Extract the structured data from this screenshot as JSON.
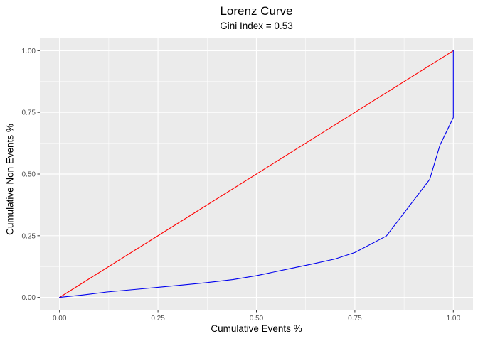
{
  "chart_data": {
    "type": "line",
    "title": "Lorenz Curve",
    "subtitle": "Gini Index = 0.53",
    "xlabel": "Cumulative Events %",
    "ylabel": "Cumulative Non Events %",
    "x_ticks": {
      "values": [
        0,
        0.25,
        0.5,
        0.75,
        1.0
      ],
      "labels": [
        "0.00",
        "0.25",
        "0.50",
        "0.75",
        "1.00"
      ]
    },
    "y_ticks": {
      "values": [
        0,
        0.25,
        0.5,
        0.75,
        1.0
      ],
      "labels": [
        "0.00",
        "0.25",
        "0.50",
        "0.75",
        "1.00"
      ]
    },
    "xlim": [
      -0.05,
      1.05
    ],
    "ylim": [
      -0.05,
      1.05
    ],
    "grid": "white major and minor gridlines on gray panel (ggplot style)",
    "legend_position": "none",
    "gini_index": 0.53,
    "series": [
      {
        "name": "line-of-equality",
        "color": "#FF0000",
        "points": [
          [
            0,
            0
          ],
          [
            1,
            1
          ]
        ]
      },
      {
        "name": "lorenz-curve",
        "color": "#0000EE",
        "points": [
          [
            0.0,
            0.0
          ],
          [
            0.06,
            0.01
          ],
          [
            0.12,
            0.022
          ],
          [
            0.19,
            0.032
          ],
          [
            0.25,
            0.041
          ],
          [
            0.31,
            0.05
          ],
          [
            0.37,
            0.059
          ],
          [
            0.44,
            0.072
          ],
          [
            0.5,
            0.088
          ],
          [
            0.58,
            0.115
          ],
          [
            0.64,
            0.135
          ],
          [
            0.7,
            0.156
          ],
          [
            0.75,
            0.182
          ],
          [
            0.83,
            0.249
          ],
          [
            0.94,
            0.478
          ],
          [
            0.966,
            0.617
          ],
          [
            1.0,
            0.729
          ],
          [
            1.0,
            1.0
          ]
        ]
      }
    ],
    "colors": {
      "panel_background": "#EBEBEB",
      "gridline": "#FFFFFF",
      "tick_label": "#4D4D4D",
      "tick_mark": "#333333",
      "text": "#000000",
      "figure_background": "#FFFFFF"
    }
  }
}
